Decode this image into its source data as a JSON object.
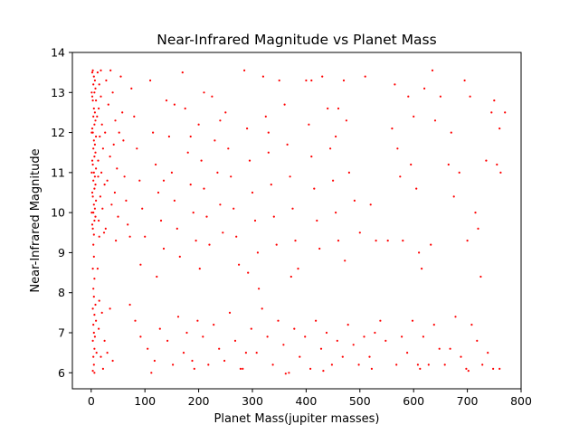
{
  "chart_data": {
    "type": "scatter",
    "title": "Near-Infrared Magnitude vs Planet Mass",
    "xlabel": "Planet Mass(jupiter masses)",
    "ylabel": "Near-Infrared Magnitude",
    "xlim": [
      -35,
      800
    ],
    "ylim": [
      5.6,
      14
    ],
    "xticks": [
      0,
      100,
      200,
      300,
      400,
      500,
      600,
      700,
      800
    ],
    "yticks": [
      6,
      7,
      8,
      9,
      10,
      11,
      12,
      13,
      14
    ],
    "grid": false,
    "legend": "none",
    "marker_color": "#ff0000",
    "series": [
      {
        "points": [
          [
            3,
            13.55
          ],
          [
            5,
            13.4
          ],
          [
            4,
            13.2
          ],
          [
            6,
            13.0
          ],
          [
            3,
            12.8
          ],
          [
            5,
            12.6
          ],
          [
            4,
            12.4
          ],
          [
            6,
            12.2
          ],
          [
            3,
            12.0
          ],
          [
            5,
            11.8
          ],
          [
            4,
            11.6
          ],
          [
            6,
            11.4
          ],
          [
            3,
            11.2
          ],
          [
            5,
            11.0
          ],
          [
            4,
            10.8
          ],
          [
            6,
            10.6
          ],
          [
            3,
            10.4
          ],
          [
            5,
            10.2
          ],
          [
            4,
            10.0
          ],
          [
            6,
            9.8
          ],
          [
            3,
            9.6
          ],
          [
            5,
            9.45
          ],
          [
            2,
            13.5
          ],
          [
            7,
            13.3
          ],
          [
            2,
            12.9
          ],
          [
            7,
            12.5
          ],
          [
            2,
            12.1
          ],
          [
            7,
            11.7
          ],
          [
            2,
            11.3
          ],
          [
            7,
            10.9
          ],
          [
            2,
            10.5
          ],
          [
            7,
            10.1
          ],
          [
            2,
            9.7
          ],
          [
            8,
            13.1
          ],
          [
            8,
            12.3
          ],
          [
            8,
            11.5
          ],
          [
            8,
            10.7
          ],
          [
            8,
            9.9
          ],
          [
            1,
            13.0
          ],
          [
            1,
            12.0
          ],
          [
            1,
            11.0
          ],
          [
            1,
            10.0
          ],
          [
            9,
            12.8
          ],
          [
            9,
            11.9
          ],
          [
            9,
            11.1
          ],
          [
            9,
            10.3
          ],
          [
            4,
            9.2
          ],
          [
            5,
            8.9
          ],
          [
            3,
            8.6
          ],
          [
            6,
            8.35
          ],
          [
            4,
            8.1
          ],
          [
            5,
            7.9
          ],
          [
            3,
            7.6
          ],
          [
            6,
            7.45
          ],
          [
            4,
            7.2
          ],
          [
            5,
            7.0
          ],
          [
            3,
            6.8
          ],
          [
            6,
            6.6
          ],
          [
            4,
            6.4
          ],
          [
            5,
            6.2
          ],
          [
            3,
            6.05
          ],
          [
            6,
            6.0
          ],
          [
            8,
            7.7
          ],
          [
            9,
            7.3
          ],
          [
            7,
            6.9
          ],
          [
            10,
            6.5
          ],
          [
            12,
            13.5
          ],
          [
            15,
            13.2
          ],
          [
            18,
            12.9
          ],
          [
            14,
            12.6
          ],
          [
            20,
            12.2
          ],
          [
            16,
            11.9
          ],
          [
            22,
            11.6
          ],
          [
            13,
            11.3
          ],
          [
            19,
            11.0
          ],
          [
            25,
            10.7
          ],
          [
            17,
            10.4
          ],
          [
            21,
            10.1
          ],
          [
            14,
            9.8
          ],
          [
            24,
            9.5
          ],
          [
            28,
            13.3
          ],
          [
            32,
            12.7
          ],
          [
            26,
            12.0
          ],
          [
            35,
            11.4
          ],
          [
            30,
            10.8
          ],
          [
            38,
            10.2
          ],
          [
            27,
            9.6
          ],
          [
            40,
            13.0
          ],
          [
            45,
            12.3
          ],
          [
            42,
            11.7
          ],
          [
            48,
            11.1
          ],
          [
            44,
            10.5
          ],
          [
            50,
            9.9
          ],
          [
            46,
            9.3
          ],
          [
            55,
            13.4
          ],
          [
            58,
            12.5
          ],
          [
            60,
            11.8
          ],
          [
            62,
            10.9
          ],
          [
            65,
            10.3
          ],
          [
            68,
            9.7
          ],
          [
            52,
            12.0
          ],
          [
            36,
            13.55
          ],
          [
            18,
            13.55
          ],
          [
            11,
            12.4
          ],
          [
            13,
            10.9
          ],
          [
            15,
            9.4
          ],
          [
            12,
            8.6
          ],
          [
            15,
            7.8
          ],
          [
            20,
            7.5
          ],
          [
            25,
            6.8
          ],
          [
            18,
            6.4
          ],
          [
            30,
            6.5
          ],
          [
            22,
            6.1
          ],
          [
            40,
            6.3
          ],
          [
            14,
            7.1
          ],
          [
            35,
            7.6
          ],
          [
            75,
            13.1
          ],
          [
            80,
            12.4
          ],
          [
            85,
            11.6
          ],
          [
            90,
            10.8
          ],
          [
            95,
            10.1
          ],
          [
            100,
            9.4
          ],
          [
            110,
            13.3
          ],
          [
            115,
            12.0
          ],
          [
            120,
            11.2
          ],
          [
            125,
            10.5
          ],
          [
            130,
            9.8
          ],
          [
            135,
            9.1
          ],
          [
            140,
            12.8
          ],
          [
            145,
            11.9
          ],
          [
            150,
            11.0
          ],
          [
            155,
            10.3
          ],
          [
            160,
            9.6
          ],
          [
            165,
            8.9
          ],
          [
            170,
            13.5
          ],
          [
            175,
            12.6
          ],
          [
            180,
            11.5
          ],
          [
            185,
            10.7
          ],
          [
            190,
            10.0
          ],
          [
            195,
            9.3
          ],
          [
            200,
            12.2
          ],
          [
            205,
            11.3
          ],
          [
            210,
            10.6
          ],
          [
            215,
            9.9
          ],
          [
            220,
            9.2
          ],
          [
            225,
            12.9
          ],
          [
            230,
            11.8
          ],
          [
            235,
            11.0
          ],
          [
            240,
            10.2
          ],
          [
            245,
            9.5
          ],
          [
            250,
            12.5
          ],
          [
            255,
            11.6
          ],
          [
            260,
            10.9
          ],
          [
            265,
            10.1
          ],
          [
            270,
            9.4
          ],
          [
            275,
            8.7
          ],
          [
            285,
            13.55
          ],
          [
            290,
            12.1
          ],
          [
            295,
            11.3
          ],
          [
            300,
            10.5
          ],
          [
            305,
            9.8
          ],
          [
            310,
            9.0
          ],
          [
            320,
            13.4
          ],
          [
            325,
            12.4
          ],
          [
            330,
            11.5
          ],
          [
            335,
            10.7
          ],
          [
            340,
            9.9
          ],
          [
            345,
            9.2
          ],
          [
            350,
            13.3
          ],
          [
            360,
            12.7
          ],
          [
            365,
            11.7
          ],
          [
            370,
            10.9
          ],
          [
            375,
            10.1
          ],
          [
            380,
            9.3
          ],
          [
            385,
            8.6
          ],
          [
            400,
            13.3
          ],
          [
            405,
            12.2
          ],
          [
            410,
            11.4
          ],
          [
            415,
            10.6
          ],
          [
            420,
            9.8
          ],
          [
            425,
            9.1
          ],
          [
            430,
            13.4
          ],
          [
            440,
            12.6
          ],
          [
            445,
            11.6
          ],
          [
            450,
            10.8
          ],
          [
            455,
            10.0
          ],
          [
            460,
            9.3
          ],
          [
            470,
            13.3
          ],
          [
            475,
            12.3
          ],
          [
            480,
            11.0
          ],
          [
            490,
            10.3
          ],
          [
            500,
            9.5
          ],
          [
            510,
            13.4
          ],
          [
            520,
            10.2
          ],
          [
            530,
            9.3
          ],
          [
            565,
            13.2
          ],
          [
            570,
            11.6
          ],
          [
            575,
            10.9
          ],
          [
            580,
            9.3
          ],
          [
            590,
            12.9
          ],
          [
            595,
            11.2
          ],
          [
            600,
            12.4
          ],
          [
            605,
            10.6
          ],
          [
            610,
            9.0
          ],
          [
            615,
            8.6
          ],
          [
            620,
            13.1
          ],
          [
            635,
            13.55
          ],
          [
            640,
            12.3
          ],
          [
            650,
            12.9
          ],
          [
            665,
            11.2
          ],
          [
            670,
            12.0
          ],
          [
            675,
            10.4
          ],
          [
            685,
            11.0
          ],
          [
            695,
            13.3
          ],
          [
            700,
            9.3
          ],
          [
            705,
            12.9
          ],
          [
            715,
            10.0
          ],
          [
            720,
            9.6
          ],
          [
            725,
            8.4
          ],
          [
            735,
            11.3
          ],
          [
            745,
            12.5
          ],
          [
            750,
            12.8
          ],
          [
            755,
            11.2
          ],
          [
            760,
            12.1
          ],
          [
            762,
            11.0
          ],
          [
            770,
            12.5
          ],
          [
            410,
            13.3
          ],
          [
            460,
            12.6
          ],
          [
            560,
            12.1
          ],
          [
            455,
            11.9
          ],
          [
            330,
            12.0
          ],
          [
            210,
            13.0
          ],
          [
            240,
            12.3
          ],
          [
            135,
            10.8
          ],
          [
            155,
            12.7
          ],
          [
            185,
            11.9
          ],
          [
            72,
            7.7
          ],
          [
            82,
            7.3
          ],
          [
            92,
            6.9
          ],
          [
            105,
            6.6
          ],
          [
            118,
            6.3
          ],
          [
            128,
            7.1
          ],
          [
            142,
            6.8
          ],
          [
            152,
            6.2
          ],
          [
            162,
            7.4
          ],
          [
            172,
            6.5
          ],
          [
            178,
            7.0
          ],
          [
            188,
            6.3
          ],
          [
            198,
            7.3
          ],
          [
            208,
            6.9
          ],
          [
            218,
            6.2
          ],
          [
            228,
            7.2
          ],
          [
            238,
            6.6
          ],
          [
            248,
            6.3
          ],
          [
            258,
            7.5
          ],
          [
            268,
            6.8
          ],
          [
            278,
            6.1
          ],
          [
            288,
            6.5
          ],
          [
            298,
            7.1
          ],
          [
            308,
            6.5
          ],
          [
            318,
            7.6
          ],
          [
            328,
            6.9
          ],
          [
            338,
            6.2
          ],
          [
            348,
            7.3
          ],
          [
            358,
            6.7
          ],
          [
            368,
            6.0
          ],
          [
            378,
            7.1
          ],
          [
            388,
            6.4
          ],
          [
            398,
            6.9
          ],
          [
            408,
            6.1
          ],
          [
            418,
            7.3
          ],
          [
            428,
            6.6
          ],
          [
            438,
            7.0
          ],
          [
            448,
            6.2
          ],
          [
            458,
            6.8
          ],
          [
            468,
            6.4
          ],
          [
            478,
            7.2
          ],
          [
            488,
            6.7
          ],
          [
            498,
            6.2
          ],
          [
            508,
            6.9
          ],
          [
            518,
            6.4
          ],
          [
            528,
            7.0
          ],
          [
            538,
            7.3
          ],
          [
            548,
            6.8
          ],
          [
            568,
            6.2
          ],
          [
            578,
            6.9
          ],
          [
            588,
            6.5
          ],
          [
            598,
            7.3
          ],
          [
            608,
            6.2
          ],
          [
            618,
            6.9
          ],
          [
            628,
            6.2
          ],
          [
            638,
            7.2
          ],
          [
            648,
            6.6
          ],
          [
            658,
            6.2
          ],
          [
            668,
            6.6
          ],
          [
            678,
            7.4
          ],
          [
            688,
            6.4
          ],
          [
            698,
            6.1
          ],
          [
            708,
            7.2
          ],
          [
            718,
            6.8
          ],
          [
            728,
            6.2
          ],
          [
            738,
            6.5
          ],
          [
            748,
            6.1
          ],
          [
            760,
            6.1
          ],
          [
            112,
            6.0
          ],
          [
            192,
            6.1
          ],
          [
            282,
            6.1
          ],
          [
            362,
            5.98
          ],
          [
            432,
            6.05
          ],
          [
            522,
            6.1
          ],
          [
            612,
            6.1
          ],
          [
            702,
            6.05
          ],
          [
            92,
            8.7
          ],
          [
            72,
            9.4
          ],
          [
            122,
            8.4
          ],
          [
            202,
            8.6
          ],
          [
            292,
            8.5
          ],
          [
            312,
            8.1
          ],
          [
            372,
            8.4
          ],
          [
            472,
            8.8
          ],
          [
            552,
            9.3
          ],
          [
            632,
            9.2
          ]
        ]
      }
    ]
  }
}
